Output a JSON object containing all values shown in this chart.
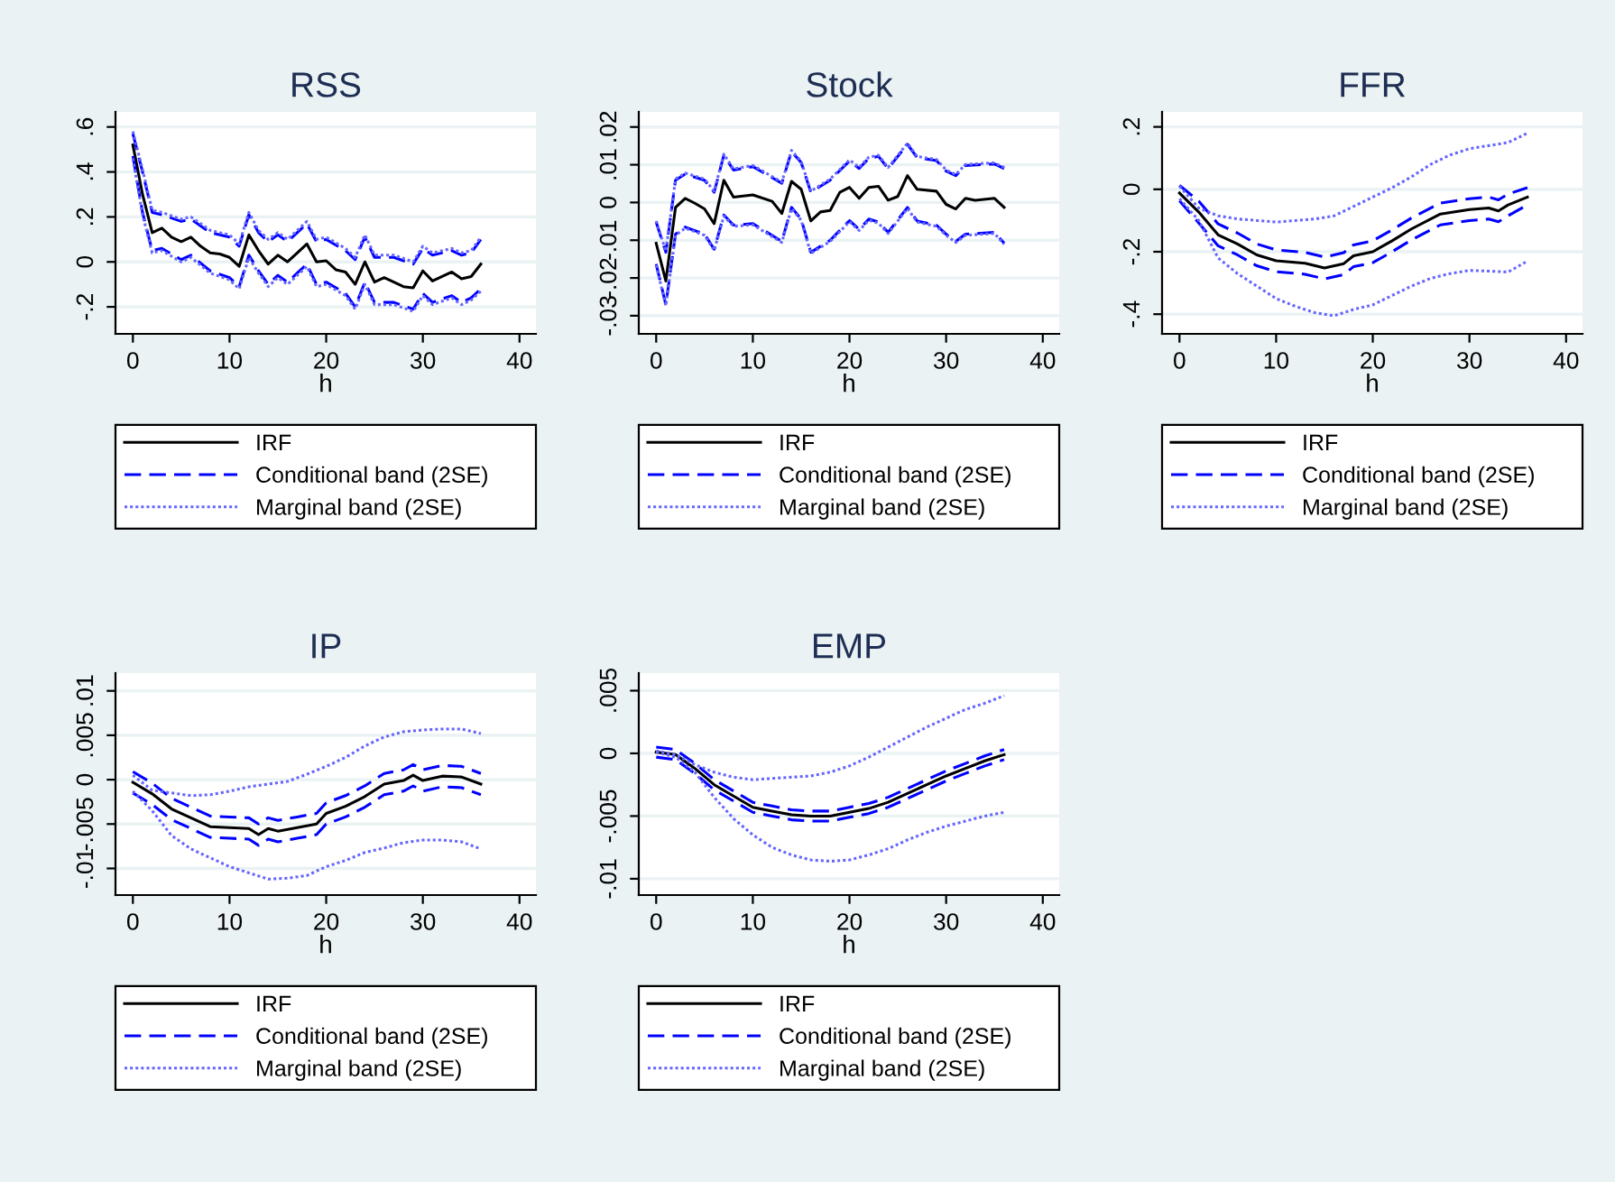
{
  "chart_data": [
    {
      "type": "line",
      "title": "RSS",
      "xlabel": "h",
      "xlim": [
        -1.8,
        41.7
      ],
      "xticks": [
        0,
        10,
        20,
        30,
        40
      ],
      "ylim": [
        -0.32,
        0.667
      ],
      "yticks": [
        {
          "value": -0.2,
          "label": "-.2"
        },
        0,
        {
          "value": 0.2,
          "label": ".2"
        },
        {
          "value": 0.4,
          "label": ".4"
        },
        {
          "value": 0.6,
          "label": ".6"
        }
      ],
      "grid": "y",
      "legend": "bottom",
      "series": [
        {
          "name": "IRF",
          "color": "#000000",
          "line_style": "solid",
          "x": [
            0,
            1,
            2,
            3,
            4,
            5,
            6,
            7,
            8,
            9,
            10,
            11,
            12,
            13,
            14,
            15,
            16,
            17,
            18,
            19,
            20,
            21,
            22,
            23,
            24,
            25,
            26,
            27,
            28,
            29,
            30,
            31,
            32,
            33,
            34,
            35,
            36
          ],
          "values": [
            0.52,
            0.3,
            0.13,
            0.15,
            0.11,
            0.09,
            0.11,
            0.07,
            0.04,
            0.035,
            0.02,
            -0.02,
            0.12,
            0.05,
            -0.01,
            0.03,
            0,
            0.04,
            0.08,
            0,
            0.005,
            -0.035,
            -0.045,
            -0.1,
            0,
            -0.09,
            -0.07,
            -0.09,
            -0.11,
            -0.115,
            -0.04,
            -0.085,
            -0.065,
            -0.045,
            -0.075,
            -0.065,
            -0.01
          ]
        },
        {
          "name": "Conditional band (2SE)",
          "color": "#0000ff",
          "line_style": "dashed",
          "x": [
            0,
            1,
            2,
            3,
            5,
            6,
            8,
            10,
            11,
            12,
            13,
            14,
            15,
            16,
            17,
            18,
            19,
            20,
            22,
            23,
            24,
            25,
            27,
            29,
            30,
            31,
            33,
            34,
            35,
            36
          ],
          "values": [
            0.57,
            0.4,
            0.22,
            0.21,
            0.18,
            0.19,
            0.13,
            0.11,
            0.07,
            0.21,
            0.13,
            0.09,
            0.12,
            0.09,
            0.13,
            0.17,
            0.09,
            0.1,
            0.05,
            0.01,
            0.11,
            0.02,
            0.02,
            -0.01,
            0.06,
            0.03,
            0.05,
            0.03,
            0.04,
            0.1
          ]
        },
        {
          "color": "#0000ff",
          "line_style": "dashed",
          "x": [
            0,
            1,
            2,
            3,
            5,
            6,
            8,
            10,
            11,
            12,
            13,
            14,
            15,
            16,
            17,
            18,
            19,
            20,
            22,
            23,
            24,
            25,
            27,
            29,
            30,
            31,
            33,
            34,
            35,
            36
          ],
          "values": [
            0.47,
            0.22,
            0.05,
            0.06,
            0.01,
            0.03,
            -0.04,
            -0.07,
            -0.11,
            0.03,
            -0.04,
            -0.1,
            -0.06,
            -0.09,
            -0.05,
            -0.01,
            -0.1,
            -0.09,
            -0.14,
            -0.2,
            -0.09,
            -0.18,
            -0.18,
            -0.21,
            -0.14,
            -0.18,
            -0.15,
            -0.18,
            -0.16,
            -0.12
          ]
        },
        {
          "name": "Marginal band (2SE)",
          "color": "#6666ff",
          "line_style": "dotted",
          "x": [
            0,
            1,
            2,
            3,
            5,
            6,
            8,
            10,
            11,
            12,
            13,
            14,
            15,
            16,
            17,
            18,
            19,
            20,
            22,
            23,
            24,
            25,
            27,
            29,
            30,
            31,
            33,
            34,
            35,
            36
          ],
          "values": [
            0.58,
            0.41,
            0.23,
            0.22,
            0.19,
            0.2,
            0.14,
            0.12,
            0.08,
            0.22,
            0.14,
            0.1,
            0.13,
            0.1,
            0.14,
            0.18,
            0.1,
            0.11,
            0.06,
            0.02,
            0.12,
            0.03,
            0.03,
            0,
            0.07,
            0.04,
            0.06,
            0.04,
            0.05,
            0.11
          ]
        },
        {
          "color": "#6666ff",
          "line_style": "dotted",
          "x": [
            0,
            1,
            2,
            3,
            5,
            6,
            8,
            10,
            11,
            12,
            13,
            14,
            15,
            16,
            17,
            18,
            19,
            20,
            22,
            23,
            24,
            25,
            27,
            29,
            30,
            31,
            33,
            34,
            35,
            36
          ],
          "values": [
            0.46,
            0.21,
            0.04,
            0.05,
            0,
            0.02,
            -0.05,
            -0.08,
            -0.12,
            0.02,
            -0.05,
            -0.11,
            -0.07,
            -0.1,
            -0.06,
            -0.02,
            -0.11,
            -0.1,
            -0.15,
            -0.21,
            -0.1,
            -0.19,
            -0.19,
            -0.22,
            -0.15,
            -0.19,
            -0.16,
            -0.19,
            -0.17,
            -0.13
          ]
        }
      ]
    },
    {
      "type": "line",
      "title": "Stock",
      "xlabel": "h",
      "xlim": [
        -1.8,
        41.7
      ],
      "xticks": [
        0,
        10,
        20,
        30,
        40
      ],
      "ylim": [
        -0.0348,
        0.024
      ],
      "yticks": [
        {
          "value": -0.03,
          "label": "-.03"
        },
        {
          "value": -0.02,
          "label": "-.02"
        },
        {
          "value": -0.01,
          "label": "-.01"
        },
        0,
        {
          "value": 0.01,
          "label": ".01"
        },
        {
          "value": 0.02,
          "label": ".02"
        }
      ],
      "grid": "y",
      "legend": "bottom",
      "series": [
        {
          "name": "IRF",
          "color": "#000000",
          "line_style": "solid",
          "x": [
            0,
            1,
            2,
            3,
            4,
            5,
            6,
            7,
            8,
            10,
            12,
            13,
            14,
            15,
            16,
            17,
            18,
            19,
            20,
            21,
            22,
            23,
            24,
            25,
            26,
            27,
            29,
            30,
            31,
            32,
            33,
            35,
            36
          ],
          "values": [
            -0.0108,
            -0.0208,
            -0.0013,
            0.0011,
            -0.0002,
            -0.0017,
            -0.0056,
            0.0059,
            0.0014,
            0.002,
            0.0003,
            -0.0029,
            0.0056,
            0.0035,
            -0.0049,
            -0.0025,
            -0.0021,
            0.0027,
            0.004,
            0.0011,
            0.004,
            0.0043,
            0.0006,
            0.0016,
            0.0071,
            0.0035,
            0.003,
            -0.0005,
            -0.0017,
            0.0011,
            0.0006,
            0.0011,
            -0.0013
          ]
        },
        {
          "name": "Conditional band (2SE)",
          "color": "#0000ff",
          "line_style": "dashed",
          "x": [
            0,
            1,
            2,
            3,
            5,
            6,
            7,
            8,
            10,
            13,
            14,
            15,
            16,
            18,
            20,
            21,
            22,
            23,
            24,
            26,
            27,
            29,
            30,
            31,
            32,
            35,
            36
          ],
          "values": [
            -0.0052,
            -0.0132,
            0.0059,
            0.0075,
            0.0059,
            0.0027,
            0.0125,
            0.0086,
            0.0095,
            0.0051,
            0.0135,
            0.0106,
            0.0027,
            0.0059,
            0.011,
            0.009,
            0.0117,
            0.0122,
            0.009,
            0.0154,
            0.0119,
            0.0111,
            0.0083,
            0.0071,
            0.0098,
            0.0102,
            0.009
          ]
        },
        {
          "color": "#0000ff",
          "line_style": "dashed",
          "x": [
            0,
            1,
            2,
            3,
            5,
            6,
            7,
            8,
            10,
            13,
            14,
            15,
            16,
            18,
            20,
            21,
            22,
            23,
            24,
            26,
            27,
            29,
            30,
            31,
            32,
            35,
            36
          ],
          "values": [
            -0.0163,
            -0.0271,
            -0.0084,
            -0.0065,
            -0.0084,
            -0.0124,
            -0.0033,
            -0.006,
            -0.0056,
            -0.0103,
            -0.0013,
            -0.0044,
            -0.0132,
            -0.01,
            -0.0048,
            -0.0071,
            -0.0044,
            -0.0052,
            -0.0079,
            -0.0013,
            -0.0049,
            -0.006,
            -0.0084,
            -0.0103,
            -0.0084,
            -0.0079,
            -0.0108
          ]
        },
        {
          "name": "Marginal band (2SE)",
          "color": "#6666ff",
          "line_style": "dotted",
          "x": [
            0,
            1,
            2,
            3,
            5,
            6,
            7,
            8,
            10,
            13,
            14,
            15,
            16,
            18,
            20,
            21,
            22,
            23,
            24,
            26,
            27,
            29,
            30,
            31,
            32,
            35,
            36
          ],
          "values": [
            -0.0049,
            -0.0129,
            0.0062,
            0.0078,
            0.0062,
            0.003,
            0.0128,
            0.0089,
            0.0098,
            0.0054,
            0.0138,
            0.0109,
            0.003,
            0.0062,
            0.0113,
            0.0093,
            0.012,
            0.0125,
            0.0093,
            0.0157,
            0.0122,
            0.0114,
            0.0086,
            0.0074,
            0.0101,
            0.0105,
            0.0093
          ]
        },
        {
          "color": "#6666ff",
          "line_style": "dotted",
          "x": [
            0,
            1,
            2,
            3,
            5,
            6,
            7,
            8,
            10,
            13,
            14,
            15,
            16,
            18,
            20,
            21,
            22,
            23,
            24,
            26,
            27,
            29,
            30,
            31,
            32,
            35,
            36
          ],
          "values": [
            -0.0166,
            -0.0274,
            -0.0087,
            -0.0068,
            -0.0087,
            -0.0127,
            -0.0036,
            -0.0063,
            -0.0059,
            -0.0106,
            -0.0016,
            -0.0047,
            -0.0135,
            -0.0103,
            -0.0051,
            -0.0074,
            -0.0047,
            -0.0055,
            -0.0082,
            -0.0016,
            -0.0052,
            -0.0063,
            -0.0087,
            -0.0106,
            -0.0087,
            -0.0082,
            -0.0111
          ]
        }
      ]
    },
    {
      "type": "line",
      "title": "FFR",
      "xlabel": "h",
      "xlim": [
        -1.8,
        41.7
      ],
      "xticks": [
        0,
        10,
        20,
        30,
        40
      ],
      "ylim": [
        -0.463,
        0.248
      ],
      "yticks": [
        {
          "value": -0.4,
          "label": "-.4"
        },
        {
          "value": -0.2,
          "label": "-.2"
        },
        0,
        {
          "value": 0.2,
          "label": ".2"
        }
      ],
      "grid": "y",
      "legend": "bottom",
      "series": [
        {
          "name": "IRF",
          "color": "#000000",
          "line_style": "solid",
          "x": [
            0,
            2,
            4,
            6,
            8,
            10,
            13,
            15,
            17,
            18,
            20,
            22,
            24,
            27,
            30,
            32,
            33,
            34,
            36
          ],
          "values": [
            -0.012,
            -0.073,
            -0.146,
            -0.175,
            -0.21,
            -0.229,
            -0.237,
            -0.252,
            -0.238,
            -0.213,
            -0.2,
            -0.165,
            -0.127,
            -0.079,
            -0.065,
            -0.06,
            -0.069,
            -0.05,
            -0.025
          ]
        },
        {
          "name": "Conditional band (2SE)",
          "color": "#0000ff",
          "line_style": "dashed",
          "x": [
            0,
            2,
            4,
            6,
            8,
            10,
            13,
            15,
            17,
            18,
            20,
            22,
            24,
            27,
            30,
            32,
            33,
            34,
            36
          ],
          "values": [
            0.013,
            -0.038,
            -0.111,
            -0.14,
            -0.175,
            -0.194,
            -0.202,
            -0.217,
            -0.203,
            -0.178,
            -0.165,
            -0.13,
            -0.092,
            -0.044,
            -0.03,
            -0.025,
            -0.034,
            -0.015,
            0.005
          ]
        },
        {
          "color": "#0000ff",
          "line_style": "dashed",
          "x": [
            0,
            2,
            4,
            6,
            8,
            10,
            13,
            15,
            17,
            18,
            20,
            22,
            24,
            27,
            30,
            32,
            33,
            34,
            36
          ],
          "values": [
            -0.037,
            -0.108,
            -0.181,
            -0.21,
            -0.245,
            -0.264,
            -0.272,
            -0.287,
            -0.273,
            -0.248,
            -0.235,
            -0.2,
            -0.162,
            -0.114,
            -0.1,
            -0.095,
            -0.104,
            -0.085,
            -0.05
          ]
        },
        {
          "name": "Marginal band (2SE)",
          "color": "#6666ff",
          "line_style": "dotted",
          "x": [
            0,
            2,
            4,
            6,
            8,
            10,
            12,
            14,
            16,
            18,
            20,
            22,
            24,
            26,
            28,
            30,
            32,
            34,
            36
          ],
          "values": [
            0.01,
            -0.06,
            -0.085,
            -0.095,
            -0.1,
            -0.105,
            -0.1,
            -0.095,
            -0.085,
            -0.055,
            -0.025,
            0.005,
            0.04,
            0.08,
            0.11,
            0.13,
            0.14,
            0.15,
            0.18
          ]
        },
        {
          "color": "#6666ff",
          "line_style": "dotted",
          "x": [
            0,
            2,
            4,
            6,
            8,
            10,
            12,
            14,
            16,
            18,
            20,
            22,
            24,
            26,
            28,
            30,
            32,
            34,
            36
          ],
          "values": [
            -0.03,
            -0.1,
            -0.22,
            -0.27,
            -0.31,
            -0.35,
            -0.375,
            -0.395,
            -0.405,
            -0.385,
            -0.37,
            -0.34,
            -0.31,
            -0.285,
            -0.27,
            -0.26,
            -0.262,
            -0.265,
            -0.23
          ]
        }
      ]
    },
    {
      "type": "line",
      "title": "IP",
      "xlabel": "h",
      "xlim": [
        -1.8,
        41.7
      ],
      "xticks": [
        0,
        10,
        20,
        30,
        40
      ],
      "ylim": [
        -0.013,
        0.012
      ],
      "yticks": [
        {
          "value": -0.01,
          "label": "-.01"
        },
        {
          "value": -0.005,
          "label": "-.005"
        },
        0,
        {
          "value": 0.005,
          "label": ".005"
        },
        {
          "value": 0.01,
          "label": ".01"
        }
      ],
      "grid": "y",
      "legend": "bottom",
      "series": [
        {
          "name": "IRF",
          "color": "#000000",
          "line_style": "solid",
          "x": [
            0,
            2,
            4,
            6,
            8,
            10,
            12,
            13,
            14,
            15,
            17,
            19,
            20,
            22,
            24,
            26,
            28,
            29,
            30,
            32,
            34,
            36
          ],
          "values": [
            -0.0003,
            -0.0016,
            -0.0033,
            -0.0043,
            -0.0053,
            -0.0054,
            -0.0055,
            -0.0062,
            -0.0055,
            -0.0058,
            -0.0054,
            -0.005,
            -0.0038,
            -0.003,
            -0.0019,
            -0.0005,
            -0.0001,
            0.0005,
            -0.0001,
            0.0004,
            0.0003,
            -0.0005
          ]
        },
        {
          "name": "Conditional band (2SE)",
          "color": "#0000ff",
          "line_style": "dashed",
          "x": [
            0,
            2,
            4,
            6,
            8,
            10,
            12,
            13,
            14,
            15,
            17,
            19,
            20,
            22,
            24,
            26,
            28,
            29,
            30,
            32,
            34,
            36
          ],
          "values": [
            0.0009,
            -0.0004,
            -0.0021,
            -0.0031,
            -0.0041,
            -0.0042,
            -0.0043,
            -0.005,
            -0.0043,
            -0.0046,
            -0.0042,
            -0.0038,
            -0.0026,
            -0.0018,
            -0.0007,
            0.0007,
            0.0011,
            0.0017,
            0.0011,
            0.0016,
            0.0015,
            0.0007
          ]
        },
        {
          "color": "#0000ff",
          "line_style": "dashed",
          "x": [
            0,
            2,
            4,
            6,
            8,
            10,
            12,
            13,
            14,
            15,
            17,
            19,
            20,
            22,
            24,
            26,
            28,
            29,
            30,
            32,
            34,
            36
          ],
          "values": [
            -0.0015,
            -0.0028,
            -0.0045,
            -0.0055,
            -0.0065,
            -0.0066,
            -0.0067,
            -0.0074,
            -0.0067,
            -0.007,
            -0.0066,
            -0.0062,
            -0.005,
            -0.0042,
            -0.0031,
            -0.0017,
            -0.0013,
            -0.0007,
            -0.0013,
            -0.0008,
            -0.0009,
            -0.0017
          ]
        },
        {
          "name": "Marginal band (2SE)",
          "color": "#6666ff",
          "line_style": "dotted",
          "x": [
            0,
            2,
            4,
            6,
            8,
            10,
            12,
            14,
            16,
            18,
            20,
            22,
            24,
            26,
            28,
            30,
            32,
            34,
            36
          ],
          "values": [
            0.0005,
            -0.0012,
            -0.0015,
            -0.0018,
            -0.0017,
            -0.0013,
            -0.0008,
            -0.0005,
            -0.0002,
            0.0006,
            0.0015,
            0.0025,
            0.0038,
            0.0048,
            0.0054,
            0.0056,
            0.0057,
            0.0057,
            0.0052
          ]
        },
        {
          "color": "#6666ff",
          "line_style": "dotted",
          "x": [
            0,
            2,
            4,
            6,
            8,
            10,
            12,
            14,
            16,
            18,
            20,
            22,
            24,
            26,
            28,
            30,
            32,
            34,
            36
          ],
          "values": [
            -0.0013,
            -0.0035,
            -0.0063,
            -0.0078,
            -0.0088,
            -0.0098,
            -0.0105,
            -0.0112,
            -0.0111,
            -0.0108,
            -0.0098,
            -0.0091,
            -0.0082,
            -0.0077,
            -0.0071,
            -0.0068,
            -0.0068,
            -0.007,
            -0.0078
          ]
        }
      ]
    },
    {
      "type": "line",
      "title": "EMP",
      "xlabel": "h",
      "xlim": [
        -1.8,
        41.7
      ],
      "xticks": [
        0,
        10,
        20,
        30,
        40
      ],
      "ylim": [
        -0.0113,
        0.0064
      ],
      "yticks": [
        {
          "value": -0.01,
          "label": "-.01"
        },
        {
          "value": -0.005,
          "label": "-.005"
        },
        0,
        {
          "value": 0.005,
          "label": ".005"
        }
      ],
      "grid": "y",
      "legend": "bottom",
      "series": [
        {
          "name": "IRF",
          "color": "#000000",
          "line_style": "solid",
          "x": [
            0,
            2,
            4,
            6,
            8,
            10,
            12,
            14,
            16,
            18,
            20,
            22,
            24,
            26,
            28,
            30,
            32,
            34,
            36
          ],
          "values": [
            0.0001,
            -0.0001,
            -0.0012,
            -0.0025,
            -0.0034,
            -0.0043,
            -0.0046,
            -0.0049,
            -0.005,
            -0.005,
            -0.0047,
            -0.0044,
            -0.0039,
            -0.0032,
            -0.0025,
            -0.0018,
            -0.0012,
            -0.0006,
            -0.0001
          ]
        },
        {
          "name": "Conditional band (2SE)",
          "color": "#0000ff",
          "line_style": "dashed",
          "x": [
            0,
            2,
            4,
            6,
            8,
            10,
            12,
            14,
            16,
            18,
            20,
            22,
            24,
            26,
            28,
            30,
            32,
            34,
            36
          ],
          "values": [
            0.0005,
            0.0003,
            -0.0008,
            -0.0021,
            -0.003,
            -0.0039,
            -0.0042,
            -0.0045,
            -0.0046,
            -0.0046,
            -0.0043,
            -0.004,
            -0.0035,
            -0.0028,
            -0.0021,
            -0.0014,
            -0.0008,
            -0.0002,
            0.0003
          ]
        },
        {
          "color": "#0000ff",
          "line_style": "dashed",
          "x": [
            0,
            2,
            4,
            6,
            8,
            10,
            12,
            14,
            16,
            18,
            20,
            22,
            24,
            26,
            28,
            30,
            32,
            34,
            36
          ],
          "values": [
            -0.0003,
            -0.0005,
            -0.0016,
            -0.0029,
            -0.0038,
            -0.0047,
            -0.005,
            -0.0053,
            -0.0054,
            -0.0054,
            -0.0051,
            -0.0048,
            -0.0043,
            -0.0036,
            -0.0029,
            -0.0022,
            -0.0016,
            -0.001,
            -0.0005
          ]
        },
        {
          "name": "Marginal band (2SE)",
          "color": "#6666ff",
          "line_style": "dotted",
          "x": [
            0,
            2,
            4,
            6,
            8,
            10,
            12,
            14,
            16,
            18,
            20,
            22,
            24,
            26,
            28,
            30,
            32,
            34,
            36
          ],
          "values": [
            0.0002,
            -0.0001,
            -0.0009,
            -0.0015,
            -0.0019,
            -0.0021,
            -0.002,
            -0.0019,
            -0.0018,
            -0.0015,
            -0.001,
            -0.0003,
            0.0005,
            0.0013,
            0.0021,
            0.0028,
            0.0035,
            0.004,
            0.0046
          ]
        },
        {
          "color": "#6666ff",
          "line_style": "dotted",
          "x": [
            0,
            2,
            4,
            6,
            8,
            10,
            12,
            14,
            16,
            18,
            20,
            22,
            24,
            26,
            28,
            30,
            32,
            34,
            36
          ],
          "values": [
            0.0001,
            -0.0003,
            -0.0015,
            -0.0035,
            -0.0052,
            -0.0065,
            -0.0075,
            -0.0081,
            -0.0085,
            -0.0086,
            -0.0085,
            -0.0081,
            -0.0076,
            -0.0069,
            -0.0063,
            -0.0058,
            -0.0054,
            -0.005,
            -0.0047
          ]
        }
      ]
    }
  ]
}
